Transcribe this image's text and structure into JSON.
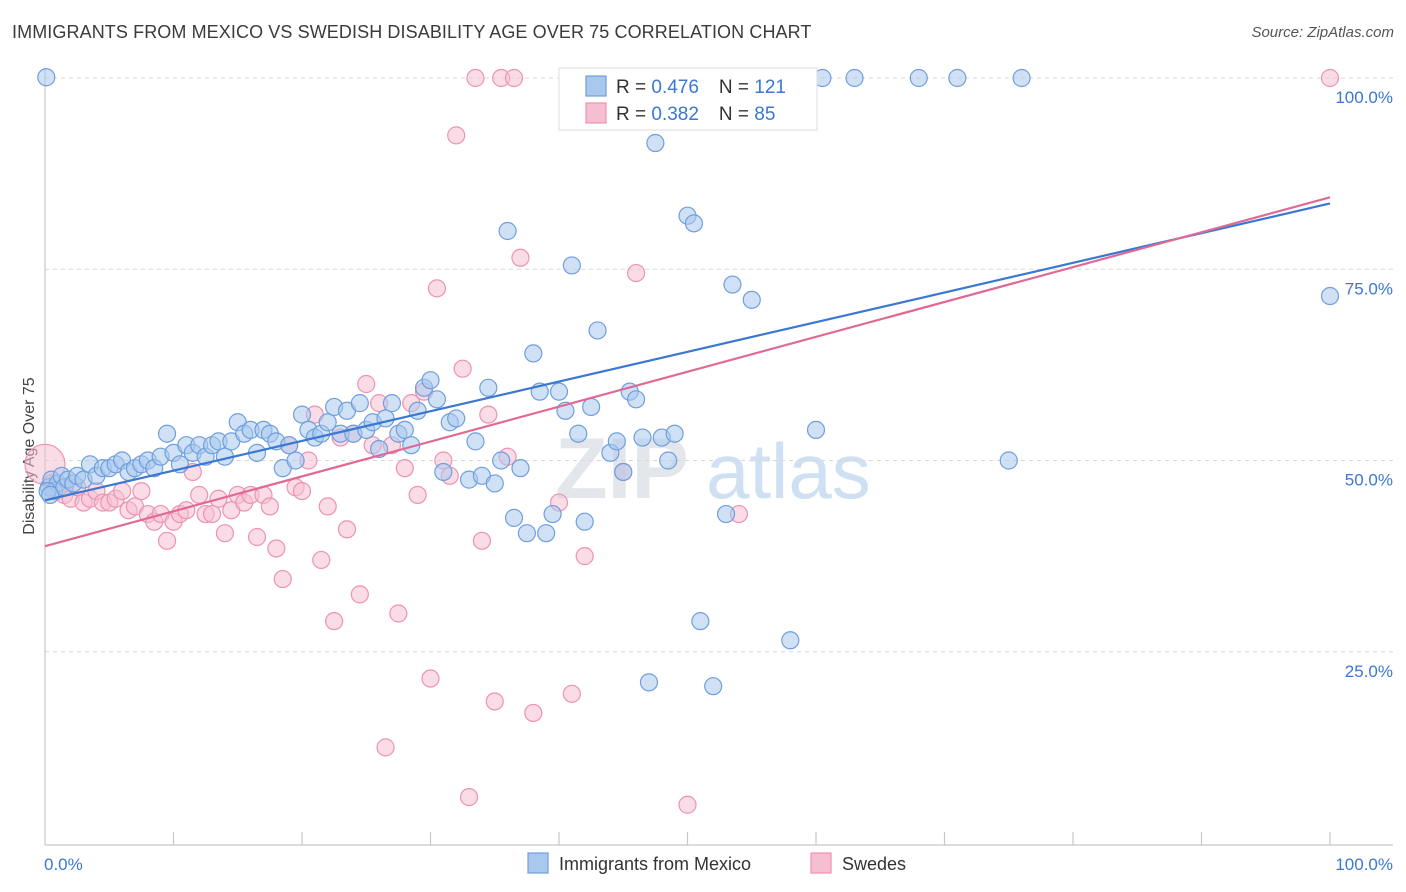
{
  "title": "IMMIGRANTS FROM MEXICO VS SWEDISH DISABILITY AGE OVER 75 CORRELATION CHART",
  "source": "Source: ZipAtlas.com",
  "watermark": {
    "zip": "ZIP",
    "atlas": "atlas"
  },
  "colors": {
    "blue_fill": "#a9c8ee",
    "blue_stroke": "#6f9fdd",
    "blue_line": "#3b78d0",
    "pink_fill": "#f6bfd1",
    "pink_stroke": "#ec93b1",
    "pink_line": "#e06a96",
    "tick_label": "#3b78d0",
    "grid": "#d8d8d8"
  },
  "legend_top": {
    "rows": [
      {
        "r_label": "R = ",
        "r_value": "0.476",
        "n_label": "N = ",
        "n_value": "121",
        "series": "blue"
      },
      {
        "r_label": "R = ",
        "r_value": "0.382",
        "n_label": "N = ",
        "n_value": "85",
        "series": "pink"
      }
    ]
  },
  "legend_bottom": [
    {
      "label": "Immigrants from Mexico",
      "series": "blue"
    },
    {
      "label": "Swedes",
      "series": "pink"
    }
  ],
  "chart_data": {
    "type": "scatter",
    "title": "IMMIGRANTS FROM MEXICO VS SWEDISH DISABILITY AGE OVER 75 CORRELATION CHART",
    "xlabel": "",
    "ylabel": "Disability Age Over 75",
    "xlim": [
      0,
      100
    ],
    "ylim": [
      0,
      100
    ],
    "x_tick_labels": [
      "0.0%",
      "100.0%"
    ],
    "y_ticks": [
      {
        "value": 25,
        "label": "25.0%"
      },
      {
        "value": 50,
        "label": "50.0%"
      },
      {
        "value": 75,
        "label": "75.0%"
      },
      {
        "value": 100,
        "label": "100.0%"
      }
    ],
    "grid": "horizontal dashed",
    "legend": "top-center",
    "series": [
      {
        "name": "Immigrants from Mexico",
        "color": "#6f9fdd",
        "r": 0.476,
        "n": 121,
        "trend": {
          "x": [
            0,
            100
          ],
          "y": [
            44.8,
            83.6
          ]
        },
        "points": [
          [
            0.3,
            46.5
          ],
          [
            0.5,
            47.5
          ],
          [
            0.7,
            46
          ],
          [
            1,
            47
          ],
          [
            1.3,
            48
          ],
          [
            1.5,
            46.5
          ],
          [
            1.8,
            47.5
          ],
          [
            2.2,
            47
          ],
          [
            2.5,
            48
          ],
          [
            3,
            47.5
          ],
          [
            3.5,
            49.5
          ],
          [
            4,
            48
          ],
          [
            4.5,
            49
          ],
          [
            5,
            49
          ],
          [
            5.5,
            49.5
          ],
          [
            6,
            50
          ],
          [
            6.5,
            48.5
          ],
          [
            7,
            49
          ],
          [
            7.5,
            49.5
          ],
          [
            8,
            50
          ],
          [
            8.5,
            49
          ],
          [
            9,
            50.5
          ],
          [
            9.5,
            53.5
          ],
          [
            10,
            51
          ],
          [
            10.5,
            49.5
          ],
          [
            11,
            52
          ],
          [
            11.5,
            51
          ],
          [
            12,
            52
          ],
          [
            12.5,
            50.5
          ],
          [
            13,
            52
          ],
          [
            13.5,
            52.5
          ],
          [
            14,
            50.5
          ],
          [
            14.5,
            52.5
          ],
          [
            15,
            55
          ],
          [
            15.5,
            53.5
          ],
          [
            16,
            54
          ],
          [
            16.5,
            51
          ],
          [
            17,
            54
          ],
          [
            17.5,
            53.5
          ],
          [
            18,
            52.5
          ],
          [
            18.5,
            49
          ],
          [
            19,
            52
          ],
          [
            19.5,
            50
          ],
          [
            20,
            56
          ],
          [
            20.5,
            54
          ],
          [
            21,
            53
          ],
          [
            21.5,
            53.5
          ],
          [
            22,
            55
          ],
          [
            22.5,
            57
          ],
          [
            23,
            53.5
          ],
          [
            23.5,
            56.5
          ],
          [
            24,
            53.5
          ],
          [
            24.5,
            57.5
          ],
          [
            25,
            54
          ],
          [
            25.5,
            55
          ],
          [
            26,
            51.5
          ],
          [
            26.5,
            55.5
          ],
          [
            27,
            57.5
          ],
          [
            27.5,
            53.5
          ],
          [
            28,
            54
          ],
          [
            28.5,
            52
          ],
          [
            29,
            56.5
          ],
          [
            29.5,
            59.5
          ],
          [
            30,
            60.5
          ],
          [
            30.5,
            58
          ],
          [
            31,
            48.5
          ],
          [
            31.5,
            55
          ],
          [
            32,
            55.5
          ],
          [
            33,
            47.5
          ],
          [
            33.5,
            52.5
          ],
          [
            34,
            48
          ],
          [
            34.5,
            59.5
          ],
          [
            35,
            47
          ],
          [
            35.5,
            50
          ],
          [
            36,
            80
          ],
          [
            36.5,
            42.5
          ],
          [
            37,
            49
          ],
          [
            37.5,
            40.5
          ],
          [
            38,
            64
          ],
          [
            38.5,
            59
          ],
          [
            39,
            40.5
          ],
          [
            39.5,
            43
          ],
          [
            40,
            59
          ],
          [
            40.5,
            56.5
          ],
          [
            41,
            75.5
          ],
          [
            41.5,
            53.5
          ],
          [
            42,
            42
          ],
          [
            42.5,
            57
          ],
          [
            43,
            67
          ],
          [
            44,
            51
          ],
          [
            44.5,
            52.5
          ],
          [
            45,
            48.5
          ],
          [
            45.5,
            59
          ],
          [
            46,
            58
          ],
          [
            46.5,
            53
          ],
          [
            47,
            21
          ],
          [
            47.5,
            91.5
          ],
          [
            48,
            53
          ],
          [
            48.5,
            50
          ],
          [
            49,
            53.5
          ],
          [
            50,
            82
          ],
          [
            50.5,
            81
          ],
          [
            51,
            29
          ],
          [
            52,
            20.5
          ],
          [
            53,
            43
          ],
          [
            53.5,
            73
          ],
          [
            55,
            71
          ],
          [
            57,
            96
          ],
          [
            58,
            26.5
          ],
          [
            58.5,
            100
          ],
          [
            60,
            54
          ],
          [
            60.5,
            100
          ],
          [
            63,
            100
          ],
          [
            68,
            100
          ],
          [
            71,
            100
          ],
          [
            75,
            50
          ],
          [
            76,
            100
          ],
          [
            0.1,
            100.1
          ],
          [
            0.2,
            46
          ],
          [
            100,
            71.5
          ],
          [
            0.4,
            45.5
          ]
        ]
      },
      {
        "name": "Swedes",
        "color": "#ec93b1",
        "r": 0.382,
        "n": 85,
        "trend": {
          "x": [
            0,
            100
          ],
          "y": [
            38.8,
            84.4
          ]
        },
        "points": [
          [
            0,
            49.5
          ],
          [
            0.5,
            47
          ],
          [
            1,
            46
          ],
          [
            1.5,
            45.5
          ],
          [
            2,
            45
          ],
          [
            2.5,
            46.5
          ],
          [
            3,
            44.5
          ],
          [
            3.5,
            45
          ],
          [
            4,
            46
          ],
          [
            4.5,
            44.5
          ],
          [
            5,
            44.5
          ],
          [
            5.5,
            45
          ],
          [
            6,
            46
          ],
          [
            6.5,
            43.5
          ],
          [
            7,
            44
          ],
          [
            7.5,
            46
          ],
          [
            8,
            43
          ],
          [
            8.5,
            42
          ],
          [
            9,
            43
          ],
          [
            9.5,
            39.5
          ],
          [
            10,
            42
          ],
          [
            10.5,
            43
          ],
          [
            11,
            43.5
          ],
          [
            11.5,
            48.5
          ],
          [
            12,
            45.5
          ],
          [
            12.5,
            43
          ],
          [
            13,
            43
          ],
          [
            13.5,
            45
          ],
          [
            14,
            40.5
          ],
          [
            14.5,
            43.5
          ],
          [
            15,
            45.5
          ],
          [
            15.5,
            44.5
          ],
          [
            16,
            45.5
          ],
          [
            16.5,
            40
          ],
          [
            17,
            45.5
          ],
          [
            17.5,
            44
          ],
          [
            18,
            38.5
          ],
          [
            18.5,
            34.5
          ],
          [
            19,
            52
          ],
          [
            19.5,
            46.5
          ],
          [
            20,
            46
          ],
          [
            20.5,
            50
          ],
          [
            21,
            56
          ],
          [
            21.5,
            37
          ],
          [
            22,
            44
          ],
          [
            22.5,
            29
          ],
          [
            23,
            53
          ],
          [
            23.5,
            41
          ],
          [
            24,
            53.5
          ],
          [
            24.5,
            32.5
          ],
          [
            25,
            60
          ],
          [
            25.5,
            52
          ],
          [
            26,
            57.5
          ],
          [
            26.5,
            12.5
          ],
          [
            27,
            52
          ],
          [
            27.5,
            30
          ],
          [
            28,
            49
          ],
          [
            28.5,
            57.5
          ],
          [
            29,
            45.5
          ],
          [
            29.5,
            59
          ],
          [
            30,
            21.5
          ],
          [
            30.5,
            72.5
          ],
          [
            31,
            50
          ],
          [
            31.5,
            48
          ],
          [
            32,
            92.5
          ],
          [
            32.5,
            62
          ],
          [
            33,
            6
          ],
          [
            34,
            39.5
          ],
          [
            34.5,
            56
          ],
          [
            35,
            18.5
          ],
          [
            36,
            50.5
          ],
          [
            37,
            76.5
          ],
          [
            38,
            17
          ],
          [
            40,
            44.5
          ],
          [
            41,
            19.5
          ],
          [
            42,
            37.5
          ],
          [
            45,
            48.5
          ],
          [
            46,
            74.5
          ],
          [
            50,
            5
          ],
          [
            54,
            43
          ],
          [
            33.5,
            100
          ],
          [
            35.5,
            100
          ],
          [
            36.5,
            100
          ],
          [
            57,
            100
          ],
          [
            100,
            100
          ]
        ]
      }
    ]
  }
}
